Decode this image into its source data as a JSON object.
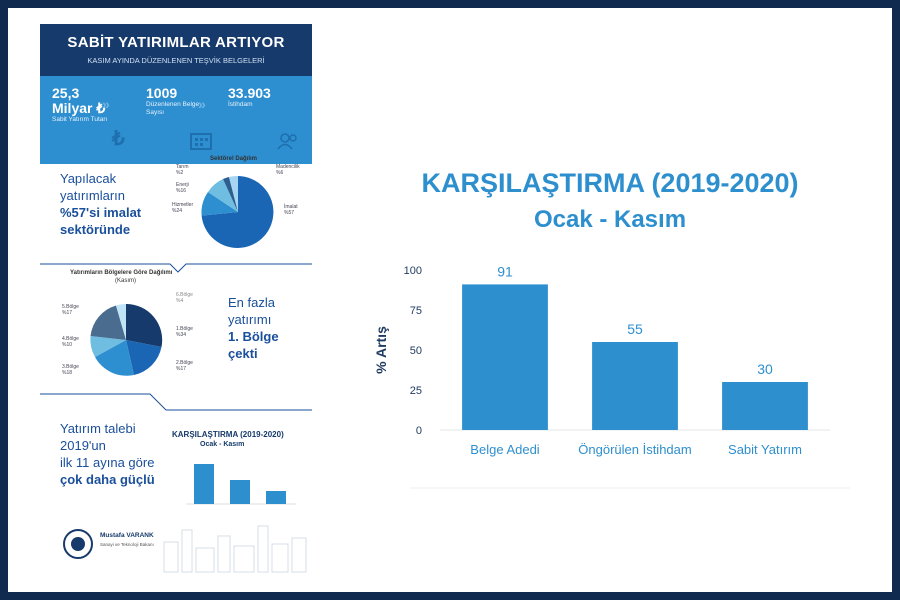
{
  "infographic": {
    "title": "SABİT YATIRIMLAR ARTIYOR",
    "subtitle": "KASIM AYINDA DÜZENLENEN TEŞVİK BELGELERİ",
    "stats": [
      {
        "value": "25,3",
        "value2": "Milyar ₺",
        "label": "Sabit Yatırım Tutarı",
        "icon": "lira-icon"
      },
      {
        "value": "1009",
        "label": "Düzenlenen Belge",
        "label2": "Sayısı",
        "icon": "building-icon"
      },
      {
        "value": "33.903",
        "label": "İstihdam",
        "icon": "people-icon"
      }
    ],
    "sector_text": [
      "Yapılacak",
      "yatırımların",
      "%57'si imalat",
      "sektöründe"
    ],
    "sector_pie_title": "Sektörel Dağılım",
    "sector_labels": [
      {
        "name": "Tarım",
        "value": "%2"
      },
      {
        "name": "Enerji",
        "value": "%16"
      },
      {
        "name": "Hizmetler",
        "value": "%24"
      },
      {
        "name": "Madencilik",
        "value": "%6"
      },
      {
        "name": "İmalat",
        "value": "%57"
      }
    ],
    "region_pie_title": "Yatırımların Bölgelere Göre Dağılımı",
    "region_pie_subtitle": "(Kasım)",
    "region_labels": [
      {
        "name": "5.Bölge",
        "value": "%17"
      },
      {
        "name": "4.Bölge",
        "value": "%10"
      },
      {
        "name": "3.Bölge",
        "value": "%18"
      },
      {
        "name": "6.Bölge",
        "value": "%4"
      },
      {
        "name": "1.Bölge",
        "value": "%34"
      },
      {
        "name": "2.Bölge",
        "value": "%17"
      }
    ],
    "region_text": [
      "En fazla",
      "yatırımı",
      "1. Bölge",
      "çekti"
    ],
    "demand_text": [
      "Yatırım talebi",
      "2019'un",
      "ilk 11 ayına göre",
      "çok daha güçlü"
    ],
    "mini_chart_title": "KARŞILAŞTIRMA  (2019-2020)",
    "mini_chart_subtitle": "Ocak - Kasım",
    "footer_name": "Mustafa VARANK",
    "footer_sub": "Sanayi ve Teknoloji Bakanı"
  },
  "chart_data": {
    "type": "bar",
    "title": "KARŞILAŞTIRMA  (2019-2020)",
    "subtitle": "Ocak - Kasım",
    "categories": [
      "Belge Adedi",
      "Öngörülen İstihdam",
      "Sabit Yatırım"
    ],
    "values": [
      91,
      55,
      30
    ],
    "ylabel": "% Artış",
    "xlabel": "",
    "ylim": [
      0,
      100
    ],
    "yticks": [
      0,
      25,
      50,
      75,
      100
    ],
    "grid": false,
    "bar_color": "#2e8fcf",
    "label_color": "#2e8fcf",
    "axis_label_color": "#1f3a5f"
  }
}
